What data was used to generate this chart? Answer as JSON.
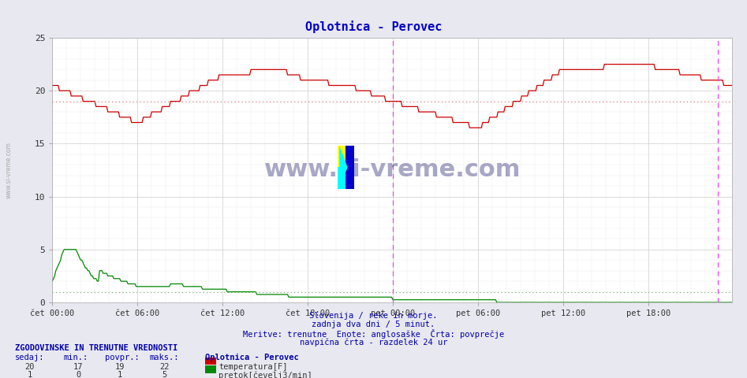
{
  "title": "Oplotnica - Perovec",
  "title_color": "#0000cc",
  "background_color": "#e8e8f0",
  "plot_bg_color": "#ffffff",
  "xlim": [
    0,
    575
  ],
  "ylim": [
    0,
    25
  ],
  "yticks": [
    0,
    5,
    10,
    15,
    20,
    25
  ],
  "xtick_labels": [
    "čet 00:00",
    "čet 06:00",
    "čet 12:00",
    "čet 18:00",
    "pet 00:00",
    "pet 06:00",
    "pet 12:00",
    "pet 18:00"
  ],
  "xtick_positions": [
    0,
    72,
    144,
    216,
    288,
    360,
    432,
    504
  ],
  "temp_avg_line": 19.0,
  "flow_avg_line": 1.0,
  "temp_color": "#cc0000",
  "flow_color": "#008800",
  "avg_line_color_temp": "#dd6666",
  "avg_line_color_flow": "#66aa66",
  "vline_positions": [
    288,
    563
  ],
  "vline_color": "#ee44ee",
  "grid_color": "#cccccc",
  "grid_minor_color": "#e8e8e8",
  "watermark": "www.si-vreme.com",
  "watermark_color": "#1a1a6e",
  "footer_lines": [
    "Slovenija / reke in morje.",
    "zadnja dva dni / 5 minut.",
    "Meritve: trenutne  Enote: anglosaške  Črta: povprečje",
    "navpična črta - razdelek 24 ur"
  ],
  "footer_color": "#0000aa",
  "legend_title": "Oplotnica - Perovec",
  "legend_items": [
    "temperatura[F]",
    "pretok[čevelj3/min]"
  ],
  "legend_colors": [
    "#cc0000",
    "#008800"
  ],
  "stats_header": "ZGODOVINSKE IN TRENUTNE VREDNOSTI",
  "stats_labels": [
    "sedaj:",
    "min.:",
    "povpr.:",
    "maks.:"
  ],
  "stats_temp": [
    20,
    17,
    19,
    22
  ],
  "stats_flow": [
    1,
    0,
    1,
    5
  ],
  "stats_color": "#0000aa",
  "n_points": 576
}
